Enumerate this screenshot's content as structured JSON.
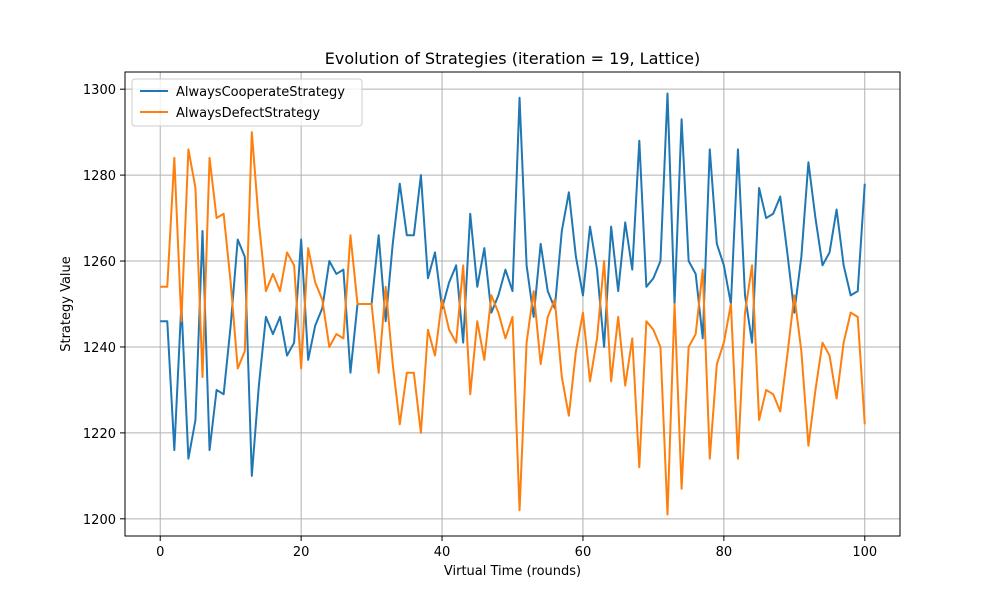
{
  "chart_data": {
    "type": "line",
    "title": "Evolution of Strategies (iteration = 19, Lattice)",
    "xlabel": "Virtual Time (rounds)",
    "ylabel": "Strategy Value",
    "xlim": [
      -5,
      105
    ],
    "ylim": [
      1196,
      1304
    ],
    "xticks": [
      0,
      20,
      40,
      60,
      80,
      100
    ],
    "yticks": [
      1200,
      1220,
      1240,
      1260,
      1280,
      1300
    ],
    "grid": true,
    "legend_position": "top-left",
    "x": [
      0,
      1,
      2,
      3,
      4,
      5,
      6,
      7,
      8,
      9,
      10,
      11,
      12,
      13,
      14,
      15,
      16,
      17,
      18,
      19,
      20,
      21,
      22,
      23,
      24,
      25,
      26,
      27,
      28,
      29,
      30,
      31,
      32,
      33,
      34,
      35,
      36,
      37,
      38,
      39,
      40,
      41,
      42,
      43,
      44,
      45,
      46,
      47,
      48,
      49,
      50,
      51,
      52,
      53,
      54,
      55,
      56,
      57,
      58,
      59,
      60,
      61,
      62,
      63,
      64,
      65,
      66,
      67,
      68,
      69,
      70,
      71,
      72,
      73,
      74,
      75,
      76,
      77,
      78,
      79,
      80,
      81,
      82,
      83,
      84,
      85,
      86,
      87,
      88,
      89,
      90,
      91,
      92,
      93,
      94,
      95,
      96,
      97,
      98,
      99,
      100
    ],
    "series": [
      {
        "name": "AlwaysCooperateStrategy",
        "color": "#1f77b4",
        "values": [
          1246,
          1246,
          1216,
          1250,
          1214,
          1223,
          1267,
          1216,
          1230,
          1229,
          1245,
          1265,
          1261,
          1210,
          1231,
          1247,
          1243,
          1247,
          1238,
          1241,
          1265,
          1237,
          1245,
          1249,
          1260,
          1257,
          1258,
          1234,
          1250,
          1250,
          1250,
          1266,
          1246,
          1264,
          1278,
          1266,
          1266,
          1280,
          1256,
          1262,
          1249,
          1255,
          1259,
          1241,
          1271,
          1254,
          1263,
          1248,
          1252,
          1258,
          1253,
          1298,
          1259,
          1247,
          1264,
          1253,
          1249,
          1267,
          1276,
          1261,
          1252,
          1268,
          1258,
          1240,
          1268,
          1253,
          1269,
          1258,
          1288,
          1254,
          1256,
          1260,
          1299,
          1250,
          1293,
          1260,
          1257,
          1242,
          1286,
          1264,
          1259,
          1250,
          1286,
          1252,
          1241,
          1277,
          1270,
          1271,
          1275,
          1262,
          1248,
          1261,
          1283,
          1270,
          1259,
          1262,
          1272,
          1259,
          1252,
          1253,
          1278
        ]
      },
      {
        "name": "AlwaysDefectStrategy",
        "color": "#ff7f0e",
        "values": [
          1254,
          1254,
          1284,
          1246,
          1286,
          1277,
          1233,
          1284,
          1270,
          1271,
          1255,
          1235,
          1239,
          1290,
          1269,
          1253,
          1257,
          1253,
          1262,
          1259,
          1235,
          1263,
          1255,
          1251,
          1240,
          1243,
          1242,
          1266,
          1250,
          1250,
          1250,
          1234,
          1254,
          1236,
          1222,
          1234,
          1234,
          1220,
          1244,
          1238,
          1251,
          1244,
          1241,
          1259,
          1229,
          1246,
          1237,
          1252,
          1248,
          1242,
          1247,
          1202,
          1241,
          1253,
          1236,
          1247,
          1251,
          1233,
          1224,
          1239,
          1248,
          1232,
          1242,
          1260,
          1232,
          1247,
          1231,
          1242,
          1212,
          1246,
          1244,
          1240,
          1201,
          1250,
          1207,
          1240,
          1243,
          1258,
          1214,
          1236,
          1241,
          1250,
          1214,
          1248,
          1259,
          1223,
          1230,
          1229,
          1225,
          1238,
          1252,
          1239,
          1217,
          1230,
          1241,
          1238,
          1228,
          1241,
          1248,
          1247,
          1222
        ]
      }
    ]
  }
}
